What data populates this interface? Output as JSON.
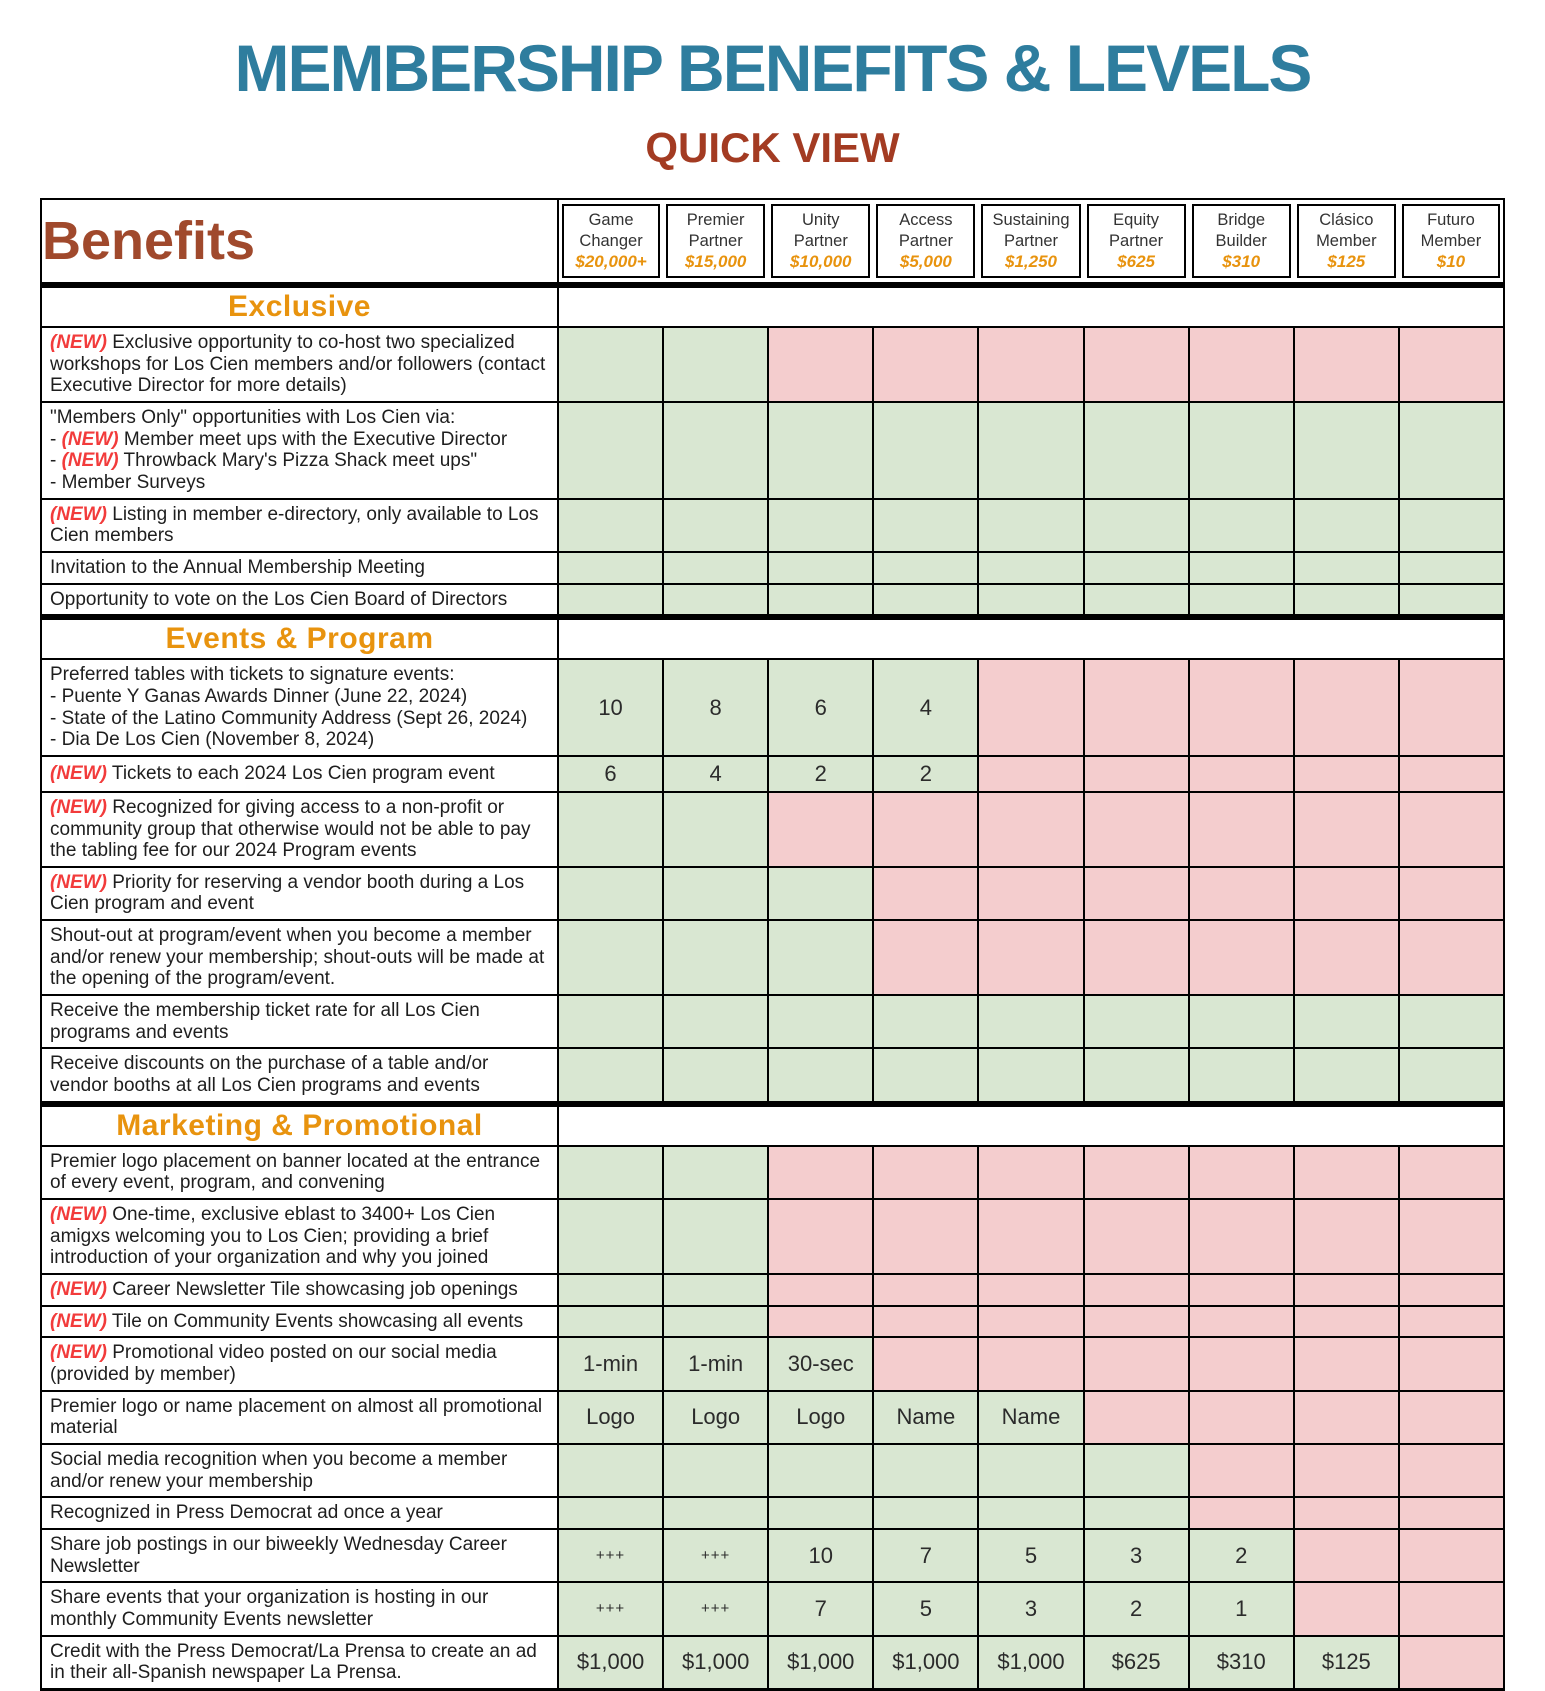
{
  "page": {
    "title": "MEMBERSHIP BENEFITS & LEVELS",
    "subtitle": "QUICK VIEW"
  },
  "colors": {
    "title_color": "#2e7d9e",
    "subtitle_color": "#a33b22",
    "benefits_heading": "#a0492c",
    "section_heading": "#e8930e",
    "price": "#e8930e",
    "new_tag": "#f23b3b",
    "granted": "#d9e7d2",
    "denied": "#f4cdce"
  },
  "table": {
    "benefits_label": "Benefits",
    "columns": [
      {
        "name": "Game Changer",
        "price": "$20,000+"
      },
      {
        "name": "Premier Partner",
        "price": "$15,000"
      },
      {
        "name": "Unity Partner",
        "price": "$10,000"
      },
      {
        "name": "Access Partner",
        "price": "$5,000"
      },
      {
        "name": "Sustaining Partner",
        "price": "$1,250"
      },
      {
        "name": "Equity Partner",
        "price": "$625"
      },
      {
        "name": "Bridge Builder",
        "price": "$310"
      },
      {
        "name": "Clásico Member",
        "price": "$125"
      },
      {
        "name": "Futuro Member",
        "price": "$10"
      }
    ],
    "sections": [
      {
        "title": "Exclusive",
        "rows": [
          {
            "label": "(NEW) Exclusive opportunity to co-host two specialized workshops for Los Cien members and/or followers (contact Executive Director for more details)",
            "cells": [
              "g:",
              "g:",
              "r:",
              "r:",
              "r:",
              "r:",
              "r:",
              "r:",
              "r:"
            ]
          },
          {
            "label": "\"Members Only\" opportunities with Los Cien via:\n- (NEW) Member meet ups with the Executive Director\n- (NEW) Throwback Mary's Pizza Shack meet ups\"\n- Member Surveys",
            "cells": [
              "g:",
              "g:",
              "g:",
              "g:",
              "g:",
              "g:",
              "g:",
              "g:",
              "g:"
            ]
          },
          {
            "label": "(NEW) Listing in member e-directory, only available to Los Cien members",
            "cells": [
              "g:",
              "g:",
              "g:",
              "g:",
              "g:",
              "g:",
              "g:",
              "g:",
              "g:"
            ]
          },
          {
            "label": "Invitation to the Annual Membership Meeting",
            "cells": [
              "g:",
              "g:",
              "g:",
              "g:",
              "g:",
              "g:",
              "g:",
              "g:",
              "g:"
            ]
          },
          {
            "label": "Opportunity to vote on the Los Cien Board of Directors",
            "cells": [
              "g:",
              "g:",
              "g:",
              "g:",
              "g:",
              "g:",
              "g:",
              "g:",
              "g:"
            ]
          }
        ]
      },
      {
        "title": "Events & Program",
        "rows": [
          {
            "label": "Preferred tables with tickets to signature events:\n- Puente Y Ganas Awards Dinner (June 22, 2024)\n- State of the Latino Community Address (Sept 26, 2024)\n- Dia De Los Cien (November 8, 2024)",
            "cells": [
              "g:10",
              "g:8",
              "g:6",
              "g:4",
              "r:",
              "r:",
              "r:",
              "r:",
              "r:"
            ]
          },
          {
            "label": "(NEW) Tickets to each 2024 Los Cien program event",
            "cells": [
              "g:6",
              "g:4",
              "g:2",
              "g:2",
              "r:",
              "r:",
              "r:",
              "r:",
              "r:"
            ]
          },
          {
            "label": "(NEW) Recognized for giving access to a non-profit or community group that otherwise would not be able to pay the tabling fee for our 2024 Program events",
            "cells": [
              "g:",
              "g:",
              "r:",
              "r:",
              "r:",
              "r:",
              "r:",
              "r:",
              "r:"
            ]
          },
          {
            "label": "(NEW) Priority for reserving a vendor booth during a Los Cien program and event",
            "cells": [
              "g:",
              "g:",
              "g:",
              "r:",
              "r:",
              "r:",
              "r:",
              "r:",
              "r:"
            ]
          },
          {
            "label": "Shout-out at program/event when you become a member and/or renew your membership; shout-outs will be made at the opening of the program/event.",
            "cells": [
              "g:",
              "g:",
              "g:",
              "r:",
              "r:",
              "r:",
              "r:",
              "r:",
              "r:"
            ]
          },
          {
            "label": "Receive the membership ticket rate for all Los Cien programs and events",
            "cells": [
              "g:",
              "g:",
              "g:",
              "g:",
              "g:",
              "g:",
              "g:",
              "g:",
              "g:"
            ]
          },
          {
            "label": "Receive discounts on the purchase of a table and/or vendor booths at all Los Cien programs and events",
            "cells": [
              "g:",
              "g:",
              "g:",
              "g:",
              "g:",
              "g:",
              "g:",
              "g:",
              "g:"
            ]
          }
        ]
      },
      {
        "title": "Marketing & Promotional",
        "rows": [
          {
            "label": "Premier logo placement on banner located at the entrance of every event, program, and convening",
            "cells": [
              "g:",
              "g:",
              "r:",
              "r:",
              "r:",
              "r:",
              "r:",
              "r:",
              "r:"
            ]
          },
          {
            "label": "(NEW) One-time, exclusive eblast to 3400+ Los Cien amigxs welcoming you to Los Cien; providing a brief introduction of your organization and why you joined",
            "cells": [
              "g:",
              "g:",
              "r:",
              "r:",
              "r:",
              "r:",
              "r:",
              "r:",
              "r:"
            ]
          },
          {
            "label": "(NEW) Career Newsletter Tile showcasing job openings",
            "cells": [
              "g:",
              "g:",
              "r:",
              "r:",
              "r:",
              "r:",
              "r:",
              "r:",
              "r:"
            ]
          },
          {
            "label": "(NEW) Tile on Community Events showcasing all events",
            "cells": [
              "g:",
              "g:",
              "r:",
              "r:",
              "r:",
              "r:",
              "r:",
              "r:",
              "r:"
            ]
          },
          {
            "label": "(NEW) Promotional video posted on our social media (provided by member)",
            "cells": [
              "g:1-min",
              "g:1-min",
              "g:30-sec",
              "r:",
              "r:",
              "r:",
              "r:",
              "r:",
              "r:"
            ]
          },
          {
            "label": "Premier logo or name placement on almost all promotional material",
            "cells": [
              "g:Logo",
              "g:Logo",
              "g:Logo",
              "g:Name",
              "g:Name",
              "r:",
              "r:",
              "r:",
              "r:"
            ]
          },
          {
            "label": "Social media recognition when you become a member and/or renew your membership",
            "cells": [
              "g:",
              "g:",
              "g:",
              "g:",
              "g:",
              "g:",
              "r:",
              "r:",
              "r:"
            ]
          },
          {
            "label": "Recognized in Press Democrat ad once a year",
            "cells": [
              "g:",
              "g:",
              "g:",
              "g:",
              "g:",
              "g:",
              "r:",
              "r:",
              "r:"
            ]
          },
          {
            "label": "Share job postings in our biweekly Wednesday Career Newsletter",
            "cells": [
              "g:+++",
              "g:+++",
              "g:10",
              "g:7",
              "g:5",
              "g:3",
              "g:2",
              "r:",
              "r:"
            ]
          },
          {
            "label": "Share events that your organization is hosting in our monthly Community Events newsletter",
            "cells": [
              "g:+++",
              "g:+++",
              "g:7",
              "g:5",
              "g:3",
              "g:2",
              "g:1",
              "r:",
              "r:"
            ]
          },
          {
            "label": "Credit with the Press Democrat/La Prensa to create an ad in their all-Spanish newspaper La Prensa.",
            "cells": [
              "g:$1,000",
              "g:$1,000",
              "g:$1,000",
              "g:$1,000",
              "g:$1,000",
              "g:$625",
              "g:$310",
              "g:$125",
              "r:"
            ]
          }
        ]
      }
    ]
  }
}
